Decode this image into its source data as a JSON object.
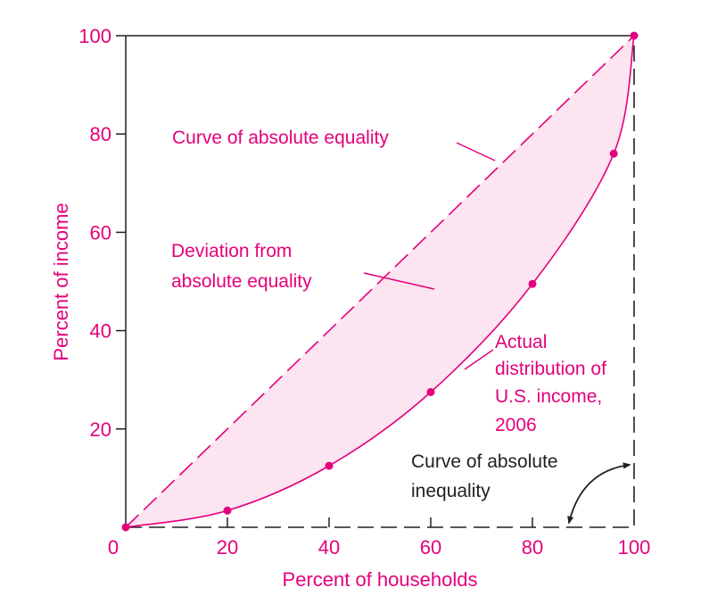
{
  "colors": {
    "accent": "#e4007c",
    "shade": "#fce4f0",
    "ink": "#231f20"
  },
  "chart_data": {
    "type": "line",
    "title": "",
    "xlabel": "Percent of households",
    "ylabel": "Percent of income",
    "xlim": [
      0,
      100
    ],
    "ylim": [
      0,
      100
    ],
    "x_ticks": [
      0,
      20,
      40,
      60,
      80,
      100
    ],
    "y_ticks": [
      20,
      40,
      60,
      80,
      100
    ],
    "grid": false,
    "series": [
      {
        "name": "Curve of absolute equality",
        "style": "dashed",
        "x": [
          0,
          100
        ],
        "y": [
          0,
          100
        ]
      },
      {
        "name": "Actual distribution of U.S. income, 2006",
        "style": "solid",
        "x": [
          0,
          20,
          40,
          60,
          80,
          96,
          100
        ],
        "y": [
          0,
          3.4,
          12.5,
          27.5,
          49.5,
          76,
          100
        ]
      },
      {
        "name": "Curve of absolute inequality",
        "style": "dashed",
        "x": [
          0,
          100,
          100
        ],
        "y": [
          0,
          0,
          100
        ]
      }
    ],
    "annotations": {
      "equality": [
        "Curve of absolute equality"
      ],
      "deviation": [
        "Deviation from",
        "absolute equality"
      ],
      "actual": [
        "Actual",
        "distribution of",
        "U.S. income,",
        "2006"
      ],
      "inequality": [
        "Curve of absolute",
        "inequality"
      ]
    }
  }
}
